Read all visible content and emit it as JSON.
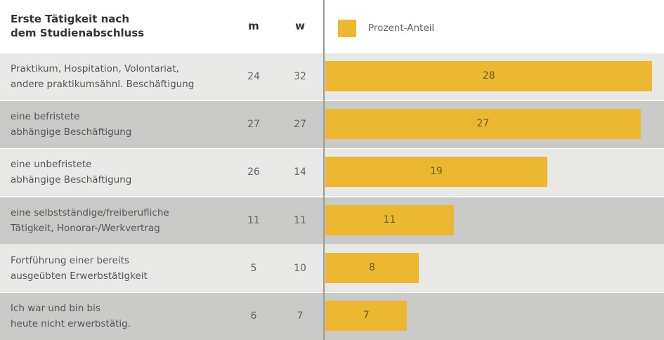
{
  "chart_data": {
    "type": "bar",
    "title": "Erste Tätigkeit nach\ndem Studienabschluss",
    "table": {
      "columns": [
        "m",
        "w"
      ],
      "rows": [
        [
          24,
          32
        ],
        [
          27,
          27
        ],
        [
          26,
          14
        ],
        [
          11,
          11
        ],
        [
          5,
          10
        ],
        [
          6,
          7
        ]
      ]
    },
    "categories": [
      "Praktikum, Hospitation, Volontariat,\nandere praktikumsähnl. Beschäftigung",
      "eine befristete\nabhängige Beschäftigung",
      "eine unbefristete\nabhängige Beschäftigung",
      "eine selbstständige/freiberufliche\nTätigkeit, Honorar-/Werkvertrag",
      "Fortführung einer bereits\nausgeübten Erwerbstätigkeit",
      "Ich war und bin bis\nheute nicht erwerbstätig."
    ],
    "series": [
      {
        "name": "Prozent-Anteil",
        "color": "#ecb731",
        "values": [
          28,
          27,
          19,
          11,
          8,
          7
        ]
      }
    ],
    "xlim": [
      0,
      29
    ]
  }
}
